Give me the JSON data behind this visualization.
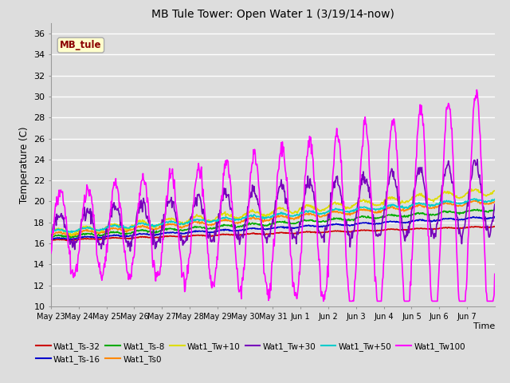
{
  "title": "MB Tule Tower: Open Water 1 (3/19/14-now)",
  "xlabel": "Time",
  "ylabel": "Temperature (C)",
  "ylim": [
    10,
    37
  ],
  "yticks": [
    10,
    12,
    14,
    16,
    18,
    20,
    22,
    24,
    26,
    28,
    30,
    32,
    34,
    36
  ],
  "bg_color": "#dddddd",
  "fig_bg": "#dddddd",
  "series": [
    {
      "label": "Wat1_Ts-32",
      "color": "#cc0000"
    },
    {
      "label": "Wat1_Ts-16",
      "color": "#0000cc"
    },
    {
      "label": "Wat1_Ts-8",
      "color": "#00aa00"
    },
    {
      "label": "Wat1_Ts0",
      "color": "#ff8800"
    },
    {
      "label": "Wat1_Tw+10",
      "color": "#dddd00"
    },
    {
      "label": "Wat1_Tw+30",
      "color": "#7700bb"
    },
    {
      "label": "Wat1_Tw+50",
      "color": "#00cccc"
    },
    {
      "label": "Wat1_Tw100",
      "color": "#ff00ff"
    }
  ],
  "xtick_labels": [
    "May 23",
    "May 24",
    "May 25",
    "May 26",
    "May 27",
    "May 28",
    "May 29",
    "May 30",
    "May 31",
    "Jun 1",
    "Jun 2",
    "Jun 3",
    "Jun 4",
    "Jun 5",
    "Jun 6",
    "Jun 7"
  ],
  "annotation_text": "MB_tule",
  "annotation_color": "#8B0000",
  "annotation_bg": "#ffffcc"
}
